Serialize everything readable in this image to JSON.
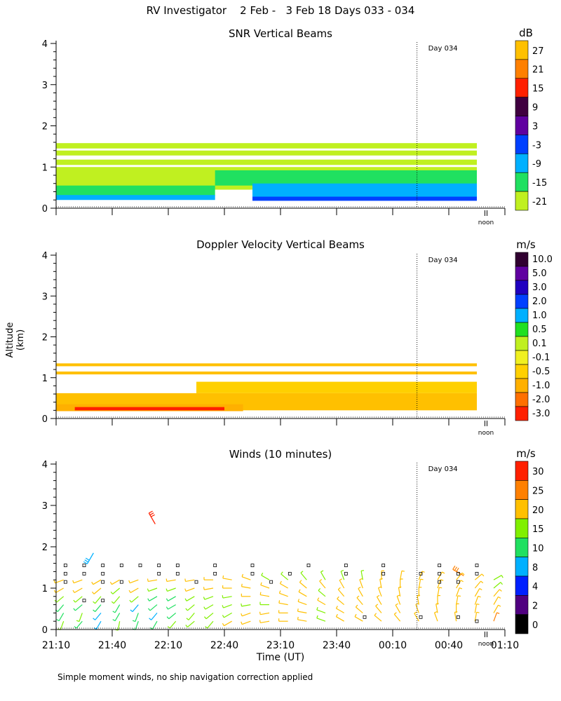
{
  "title": "RV Investigator    2 Feb -   3 Feb 18 Days 033 - 034",
  "y_axis_title": "Altitude (km)",
  "footnote": "Simple moment winds, no ship navigation correction applied",
  "chart_data": [
    {
      "type": "heatmap",
      "title": "SNR Vertical Beams",
      "xlim": [
        0,
        240
      ],
      "ylim": [
        0,
        4
      ],
      "yticks": [
        "0",
        "1",
        "2",
        "3",
        "4"
      ],
      "day_marker": {
        "x": 193,
        "label": "Day 034"
      },
      "noon_label": "noon",
      "colorbar": {
        "unit": "dB",
        "labels": [
          "27",
          "21",
          "15",
          "9",
          "3",
          "-3",
          "-9",
          "-15",
          "-21"
        ],
        "colors": [
          "#ffc000",
          "#ff8000",
          "#ff2000",
          "#400040",
          "#6000a0",
          "#0040ff",
          "#00b0ff",
          "#20e060",
          "#c0f020"
        ]
      },
      "layers": [
        {
          "x0": 0,
          "x1": 225,
          "y0": 1.45,
          "y1": 1.58,
          "color": "#c0f020"
        },
        {
          "x0": 0,
          "x1": 225,
          "y0": 1.28,
          "y1": 1.4,
          "color": "#c0f020"
        },
        {
          "x0": 0,
          "x1": 225,
          "y0": 1.05,
          "y1": 1.18,
          "color": "#c0f020"
        },
        {
          "x0": 0,
          "x1": 225,
          "y0": 0.45,
          "y1": 1.0,
          "color": "#c0f020"
        },
        {
          "x0": 85,
          "x1": 225,
          "y0": 0.55,
          "y1": 0.92,
          "color": "#20e060"
        },
        {
          "x0": 0,
          "x1": 85,
          "y0": 0.3,
          "y1": 0.55,
          "color": "#20e060"
        },
        {
          "x0": 0,
          "x1": 85,
          "y0": 0.2,
          "y1": 0.32,
          "color": "#00b0ff"
        },
        {
          "x0": 105,
          "x1": 225,
          "y0": 0.2,
          "y1": 0.6,
          "color": "#00b0ff"
        },
        {
          "x0": 105,
          "x1": 225,
          "y0": 0.18,
          "y1": 0.28,
          "color": "#0040ff"
        }
      ]
    },
    {
      "type": "heatmap",
      "title": "Doppler Velocity Vertical Beams",
      "xlim": [
        0,
        240
      ],
      "ylim": [
        0,
        4
      ],
      "yticks": [
        "0",
        "1",
        "2",
        "3",
        "4"
      ],
      "day_marker": {
        "x": 193,
        "label": "Day 034"
      },
      "noon_label": "noon",
      "colorbar": {
        "unit": "m/s",
        "labels": [
          "10.0",
          "5.0",
          "3.0",
          "2.0",
          "1.0",
          "0.5",
          "0.1",
          "-0.1",
          "-0.5",
          "-1.0",
          "-2.0",
          "-3.0"
        ],
        "colors": [
          "#300030",
          "#6000a0",
          "#2000c0",
          "#0040ff",
          "#00b0ff",
          "#20e020",
          "#c0f020",
          "#f0f020",
          "#ffd000",
          "#ffb000",
          "#ff7000",
          "#ff2000"
        ]
      },
      "layers": [
        {
          "x0": 0,
          "x1": 225,
          "y0": 1.08,
          "y1": 1.15,
          "color": "#ffc000"
        },
        {
          "x0": 0,
          "x1": 225,
          "y0": 1.28,
          "y1": 1.35,
          "color": "#ffc000"
        },
        {
          "x0": 75,
          "x1": 225,
          "y0": 0.62,
          "y1": 0.9,
          "color": "#ffd000"
        },
        {
          "x0": 0,
          "x1": 225,
          "y0": 0.2,
          "y1": 0.62,
          "color": "#ffc000"
        },
        {
          "x0": 0,
          "x1": 100,
          "y0": 0.18,
          "y1": 0.35,
          "color": "#ffb000"
        },
        {
          "x0": 10,
          "x1": 90,
          "y0": 0.2,
          "y1": 0.28,
          "color": "#ff2000"
        }
      ]
    },
    {
      "type": "scatter",
      "title": "Winds (10 minutes)",
      "xlim": [
        0,
        240
      ],
      "ylim": [
        0,
        4
      ],
      "yticks": [
        "0",
        "1",
        "2",
        "3",
        "4"
      ],
      "xticks": [
        0,
        30,
        60,
        90,
        120,
        150,
        180,
        210,
        240
      ],
      "xticklabels": [
        "21:10",
        "21:40",
        "22:10",
        "22:40",
        "23:10",
        "23:40",
        "00:10",
        "00:40",
        "01:10"
      ],
      "xlabel": "Time (UT)",
      "day_marker": {
        "x": 193,
        "label": "Day 034"
      },
      "noon_label": "noon",
      "colorbar": {
        "unit": "m/s",
        "labels": [
          "30",
          "25",
          "20",
          "15",
          "10",
          "8",
          "4",
          "2",
          "0"
        ],
        "colors": [
          "#ff2000",
          "#ff8000",
          "#ffc000",
          "#80f000",
          "#20e060",
          "#00b0ff",
          "#0020ff",
          "#500080",
          "#000000"
        ]
      },
      "times": [
        0,
        10,
        20,
        30,
        40,
        50,
        60,
        70,
        80,
        90,
        100,
        110,
        120,
        130,
        140,
        150,
        160,
        170,
        180,
        190,
        200,
        210,
        220,
        230
      ],
      "altitudes": [
        0.2,
        0.4,
        0.6,
        0.8,
        1.0,
        1.2
      ],
      "speed_category": [
        [
          3,
          4,
          5,
          3,
          4,
          4,
          3,
          3,
          3,
          2,
          2,
          2,
          2,
          2,
          3,
          2,
          2,
          2,
          2,
          2,
          2,
          2,
          2,
          1
        ],
        [
          4,
          3,
          5,
          4,
          4,
          5,
          4,
          3,
          3,
          3,
          2,
          2,
          2,
          2,
          3,
          2,
          2,
          2,
          2,
          2,
          2,
          2,
          2,
          2
        ],
        [
          4,
          4,
          4,
          4,
          5,
          4,
          4,
          3,
          3,
          3,
          3,
          3,
          2,
          2,
          2,
          2,
          2,
          2,
          2,
          2,
          2,
          2,
          2,
          2
        ],
        [
          3,
          3,
          3,
          3,
          3,
          4,
          4,
          3,
          3,
          3,
          2,
          2,
          2,
          2,
          3,
          2,
          2,
          2,
          2,
          2,
          2,
          2,
          2,
          2
        ],
        [
          2,
          2,
          2,
          3,
          2,
          3,
          3,
          2,
          2,
          2,
          2,
          2,
          2,
          2,
          2,
          2,
          2,
          2,
          2,
          2,
          2,
          2,
          2,
          3
        ],
        [
          2,
          2,
          2,
          2,
          2,
          2,
          2,
          2,
          2,
          2,
          2,
          3,
          3,
          3,
          3,
          3,
          3,
          2,
          2,
          2,
          2,
          2,
          2,
          3
        ]
      ],
      "direction_deg": [
        [
          200,
          220,
          210,
          190,
          200,
          210,
          220,
          230,
          220,
          240,
          250,
          260,
          270,
          280,
          290,
          300,
          300,
          310,
          320,
          330,
          340,
          350,
          10,
          20
        ],
        [
          210,
          200,
          220,
          210,
          200,
          220,
          230,
          220,
          230,
          240,
          250,
          260,
          270,
          280,
          290,
          300,
          310,
          320,
          330,
          340,
          350,
          0,
          10,
          30
        ],
        [
          220,
          230,
          220,
          210,
          220,
          230,
          240,
          230,
          240,
          250,
          260,
          270,
          280,
          290,
          300,
          310,
          320,
          330,
          340,
          350,
          0,
          10,
          20,
          30
        ],
        [
          230,
          230,
          220,
          220,
          230,
          240,
          240,
          240,
          250,
          260,
          270,
          280,
          290,
          300,
          310,
          320,
          330,
          340,
          350,
          0,
          10,
          20,
          30,
          40
        ],
        [
          240,
          240,
          230,
          230,
          240,
          250,
          250,
          250,
          260,
          270,
          280,
          290,
          300,
          310,
          320,
          330,
          340,
          350,
          0,
          10,
          20,
          30,
          40,
          50
        ],
        [
          250,
          250,
          240,
          240,
          250,
          260,
          260,
          260,
          270,
          280,
          290,
          300,
          310,
          320,
          330,
          340,
          350,
          0,
          10,
          20,
          30,
          40,
          50,
          60
        ]
      ],
      "calm_points": [
        {
          "x": 5,
          "y": 1.55
        },
        {
          "x": 15,
          "y": 1.55
        },
        {
          "x": 25,
          "y": 1.55
        },
        {
          "x": 35,
          "y": 1.55
        },
        {
          "x": 45,
          "y": 1.55
        },
        {
          "x": 55,
          "y": 1.55
        },
        {
          "x": 65,
          "y": 1.55
        },
        {
          "x": 85,
          "y": 1.55
        },
        {
          "x": 105,
          "y": 1.55
        },
        {
          "x": 135,
          "y": 1.55
        },
        {
          "x": 155,
          "y": 1.55
        },
        {
          "x": 175,
          "y": 1.55
        },
        {
          "x": 205,
          "y": 1.55
        },
        {
          "x": 225,
          "y": 1.55
        },
        {
          "x": 5,
          "y": 1.35
        },
        {
          "x": 15,
          "y": 1.35
        },
        {
          "x": 25,
          "y": 1.35
        },
        {
          "x": 55,
          "y": 1.35
        },
        {
          "x": 65,
          "y": 1.35
        },
        {
          "x": 85,
          "y": 1.35
        },
        {
          "x": 105,
          "y": 1.35
        },
        {
          "x": 125,
          "y": 1.35
        },
        {
          "x": 155,
          "y": 1.35
        },
        {
          "x": 175,
          "y": 1.35
        },
        {
          "x": 195,
          "y": 1.35
        },
        {
          "x": 205,
          "y": 1.35
        },
        {
          "x": 215,
          "y": 1.35
        },
        {
          "x": 225,
          "y": 1.35
        },
        {
          "x": 5,
          "y": 1.15
        },
        {
          "x": 25,
          "y": 1.15
        },
        {
          "x": 35,
          "y": 1.15
        },
        {
          "x": 75,
          "y": 1.15
        },
        {
          "x": 115,
          "y": 1.15
        },
        {
          "x": 205,
          "y": 1.15
        },
        {
          "x": 215,
          "y": 1.15
        },
        {
          "x": 15,
          "y": 0.7
        },
        {
          "x": 25,
          "y": 0.7
        },
        {
          "x": 165,
          "y": 0.3
        },
        {
          "x": 195,
          "y": 0.3
        },
        {
          "x": 215,
          "y": 0.3
        },
        {
          "x": 225,
          "y": 0.2
        }
      ],
      "outlier_barbs": [
        {
          "x": 53,
          "y": 2.55,
          "dir": 330,
          "category": 0
        },
        {
          "x": 20,
          "y": 1.85,
          "dir": 210,
          "category": 5
        },
        {
          "x": 218,
          "y": 1.3,
          "dir": 300,
          "category": 1
        }
      ]
    }
  ]
}
